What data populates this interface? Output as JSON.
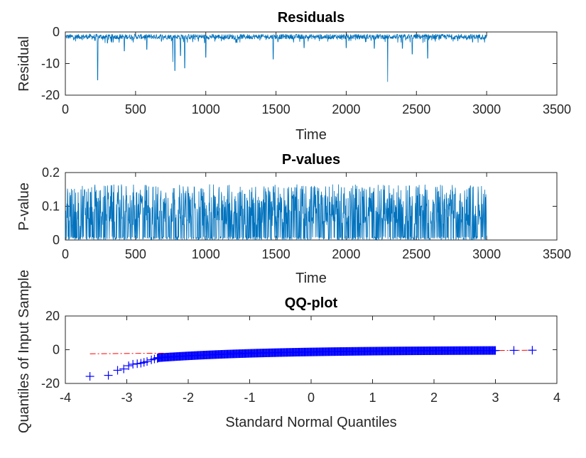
{
  "chart_data": [
    {
      "type": "line",
      "title": "Residuals",
      "xlabel": "Time",
      "ylabel": "Residual",
      "xlim": [
        0,
        3500
      ],
      "ylim": [
        -20,
        0
      ],
      "xticks": [
        0,
        500,
        1000,
        1500,
        2000,
        2500,
        3000,
        3500
      ],
      "yticks": [
        -20,
        -10,
        0
      ],
      "series": [
        {
          "name": "residual",
          "color": "#0072BD",
          "n_points": 3000,
          "baseline_range": [
            -2.3,
            -0.7
          ],
          "spikes": [
            {
              "t": 230,
              "value": -15.2
            },
            {
              "t": 300,
              "value": -3.5
            },
            {
              "t": 420,
              "value": -6.0
            },
            {
              "t": 580,
              "value": -5.5
            },
            {
              "t": 765,
              "value": -9.5
            },
            {
              "t": 780,
              "value": -12.2
            },
            {
              "t": 820,
              "value": -7.5
            },
            {
              "t": 850,
              "value": -11.4
            },
            {
              "t": 1000,
              "value": -8.0
            },
            {
              "t": 1480,
              "value": -8.6
            },
            {
              "t": 1700,
              "value": -5.0
            },
            {
              "t": 2000,
              "value": -5.0
            },
            {
              "t": 2200,
              "value": -5.2
            },
            {
              "t": 2295,
              "value": -15.8
            },
            {
              "t": 2400,
              "value": -5.2
            },
            {
              "t": 2470,
              "value": -7.0
            },
            {
              "t": 2580,
              "value": -8.3
            },
            {
              "t": 2900,
              "value": -3.2
            }
          ]
        }
      ]
    },
    {
      "type": "line",
      "title": "P-values",
      "xlabel": "Time",
      "ylabel": "P-value",
      "xlim": [
        0,
        3500
      ],
      "ylim": [
        0,
        0.2
      ],
      "xticks": [
        0,
        500,
        1000,
        1500,
        2000,
        2500,
        3000,
        3500
      ],
      "yticks": [
        0,
        0.1,
        0.2
      ],
      "series": [
        {
          "name": "p-value",
          "color": "#0072BD",
          "n_points": 3000,
          "value_range": [
            0.0,
            0.165
          ]
        }
      ]
    },
    {
      "type": "scatter",
      "title": "QQ-plot",
      "xlabel": "Standard Normal Quantiles",
      "ylabel": "Quantiles of Input Sample",
      "xlim": [
        -4,
        4
      ],
      "ylim": [
        -20,
        20
      ],
      "xticks": [
        -4,
        -3,
        -2,
        -1,
        0,
        1,
        2,
        3,
        4
      ],
      "yticks": [
        -20,
        0,
        20
      ],
      "marker_color": "#0000FF",
      "reference_line": {
        "color": "#FF0000",
        "style": "dash-dot",
        "x": [
          -3.6,
          3.6
        ],
        "y": [
          -2.4,
          -0.3
        ]
      },
      "points": [
        {
          "x": -3.6,
          "y": -15.8
        },
        {
          "x": -3.3,
          "y": -15.2
        },
        {
          "x": -3.15,
          "y": -12.2
        },
        {
          "x": -3.05,
          "y": -11.4
        },
        {
          "x": -2.97,
          "y": -9.5
        },
        {
          "x": -2.9,
          "y": -8.6
        },
        {
          "x": -2.83,
          "y": -8.3
        },
        {
          "x": -2.77,
          "y": -8.0
        },
        {
          "x": -2.72,
          "y": -7.5
        },
        {
          "x": -2.67,
          "y": -7.0
        },
        {
          "x": -2.6,
          "y": -6.0
        },
        {
          "x": -2.55,
          "y": -5.5
        },
        {
          "x": -2.5,
          "y": -5.2
        },
        {
          "x": 3.3,
          "y": -0.4
        },
        {
          "x": 3.6,
          "y": -0.3
        }
      ],
      "bulk_curve": {
        "x_range": [
          -2.5,
          3.0
        ],
        "y_at_start": -4.8,
        "y_at_end": -0.45
      }
    }
  ]
}
